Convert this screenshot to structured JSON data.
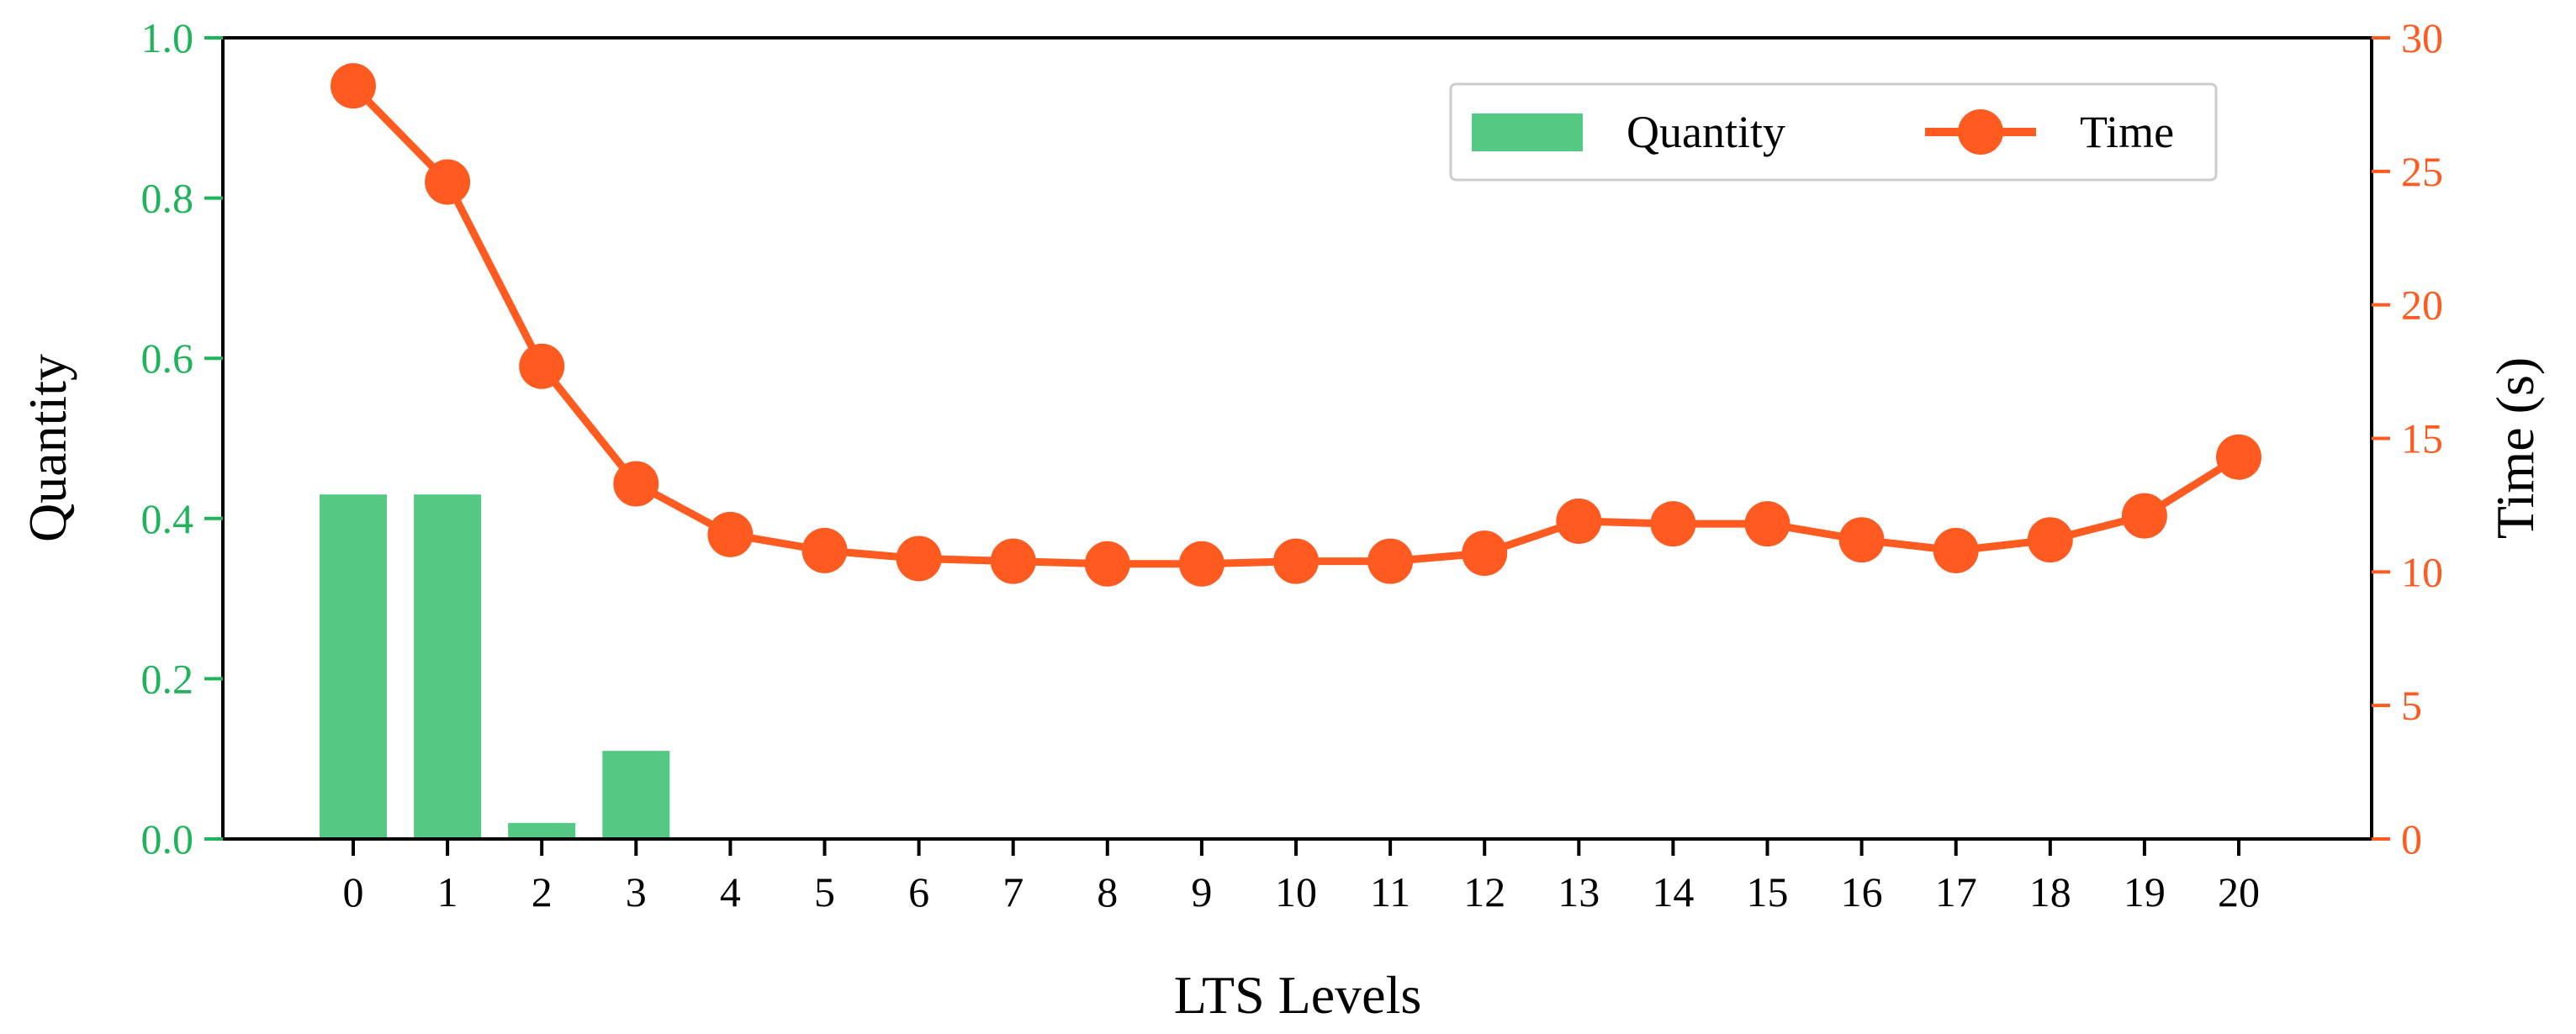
{
  "chart_data": {
    "type": "bar",
    "xlabel": "LTS Levels",
    "categories": [
      "0",
      "1",
      "2",
      "3",
      "4",
      "5",
      "6",
      "7",
      "8",
      "9",
      "10",
      "11",
      "12",
      "13",
      "14",
      "15",
      "16",
      "17",
      "18",
      "19",
      "20"
    ],
    "series": [
      {
        "name": "Quantity",
        "type": "bar",
        "axis": "left",
        "values": [
          0.43,
          0.43,
          0.02,
          0.11,
          0,
          0,
          0,
          0,
          0,
          0,
          0,
          0,
          0,
          0,
          0,
          0,
          0,
          0,
          0,
          0,
          0
        ]
      },
      {
        "name": "Time",
        "type": "line",
        "axis": "right",
        "values": [
          28.2,
          24.6,
          17.7,
          13.3,
          11.4,
          10.8,
          10.5,
          10.4,
          10.3,
          10.3,
          10.4,
          10.4,
          10.7,
          11.9,
          11.8,
          11.8,
          11.2,
          10.8,
          11.2,
          12.1,
          14.3
        ]
      }
    ],
    "y_left": {
      "label": "Quantity",
      "lim": [
        0,
        1.0
      ],
      "ticks": [
        "0.0",
        "0.2",
        "0.4",
        "0.6",
        "0.8",
        "1.0"
      ],
      "color": "#1fb45a"
    },
    "y_right": {
      "label": "Time (s)",
      "lim": [
        0,
        30
      ],
      "ticks": [
        "0",
        "5",
        "10",
        "15",
        "20",
        "25",
        "30"
      ],
      "color": "#ff5a1f"
    },
    "bar_color": "#55c884",
    "line_color": "#ff5a1f",
    "grid": false,
    "legend_position": "top-right"
  }
}
